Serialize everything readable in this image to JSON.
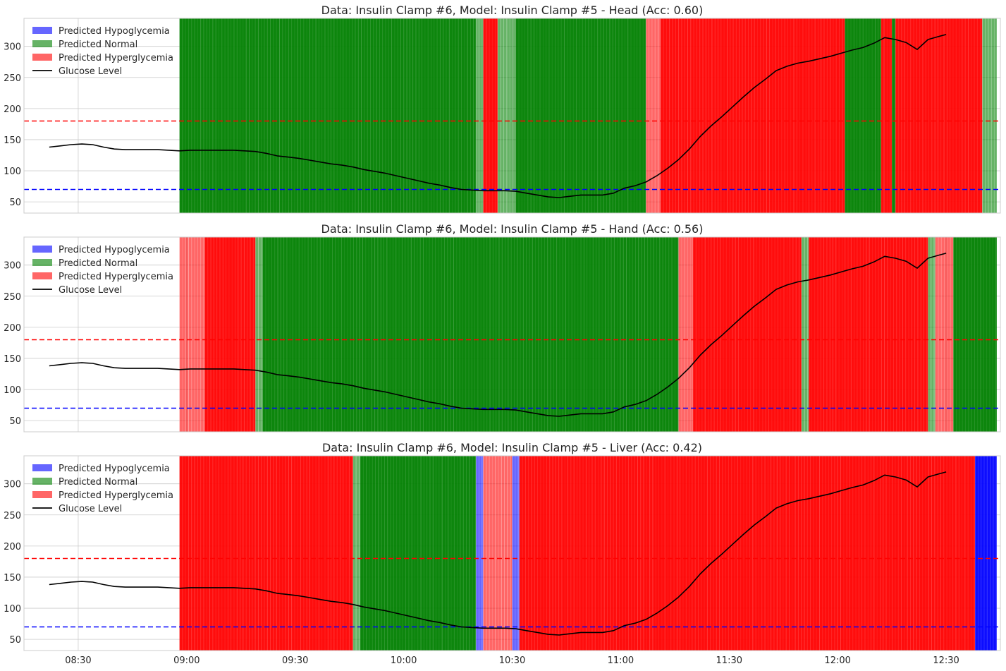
{
  "chart_data": {
    "type": "line",
    "x_axis": {
      "ticks": [
        "08:30",
        "09:00",
        "09:30",
        "10:00",
        "10:30",
        "11:00",
        "11:30",
        "12:00",
        "12:30"
      ],
      "range": [
        "08:15",
        "12:45"
      ]
    },
    "y_axis": {
      "ticks": [
        50,
        100,
        150,
        200,
        250,
        300
      ],
      "ylim": [
        32,
        345
      ]
    },
    "grid": true,
    "legend_placement": "top-left",
    "legend": [
      "Predicted Hypoglycemia",
      "Predicted Normal",
      "Predicted Hyperglycemia",
      "Glucose Level"
    ],
    "colors": {
      "hypo": "#0000ff",
      "normal": "#008000",
      "hyper": "#ff0000",
      "glucose": "#000000",
      "hypo_threshold_line": "#0000ff",
      "hyper_threshold_line": "#ff0000"
    },
    "thresholds": {
      "hypo": 70,
      "hyper": 180
    },
    "glucose": {
      "times": [
        "08:22",
        "08:25",
        "08:28",
        "08:31",
        "08:34",
        "08:37",
        "08:40",
        "08:43",
        "08:46",
        "08:49",
        "08:52",
        "08:55",
        "08:58",
        "09:01",
        "09:04",
        "09:07",
        "09:10",
        "09:13",
        "09:16",
        "09:19",
        "09:22",
        "09:25",
        "09:28",
        "09:31",
        "09:34",
        "09:37",
        "09:40",
        "09:43",
        "09:46",
        "09:49",
        "09:52",
        "09:55",
        "09:58",
        "10:01",
        "10:04",
        "10:07",
        "10:10",
        "10:13",
        "10:16",
        "10:19",
        "10:22",
        "10:25",
        "10:28",
        "10:31",
        "10:34",
        "10:37",
        "10:40",
        "10:43",
        "10:46",
        "10:49",
        "10:52",
        "10:55",
        "10:58",
        "11:01",
        "11:04",
        "11:07",
        "11:10",
        "11:13",
        "11:16",
        "11:19",
        "11:22",
        "11:25",
        "11:28",
        "11:31",
        "11:34",
        "11:37",
        "11:40",
        "11:43",
        "11:46",
        "11:49",
        "11:52",
        "11:55",
        "11:58",
        "12:01",
        "12:04",
        "12:07",
        "12:10",
        "12:13",
        "12:16",
        "12:19",
        "12:22",
        "12:25",
        "12:28",
        "12:30"
      ],
      "values": [
        138,
        140,
        142,
        143,
        142,
        138,
        135,
        134,
        134,
        134,
        134,
        133,
        132,
        133,
        133,
        133,
        133,
        133,
        132,
        131,
        128,
        124,
        122,
        120,
        117,
        114,
        111,
        109,
        106,
        102,
        99,
        96,
        92,
        88,
        84,
        80,
        77,
        73,
        70,
        69,
        68,
        68,
        68,
        67,
        64,
        61,
        58,
        57,
        59,
        61,
        61,
        61,
        64,
        72,
        76,
        82,
        92,
        104,
        118,
        135,
        155,
        172,
        187,
        203,
        219,
        234,
        247,
        261,
        268,
        273,
        276,
        280,
        284,
        289,
        294,
        298,
        305,
        314,
        311,
        306,
        295,
        311,
        316,
        319
      ]
    },
    "panels": [
      {
        "title": "Data: Insulin Clamp #6, Model: Insulin Clamp #5 - Head (Acc: 0.60)",
        "segments": [
          {
            "start": "08:58",
            "end": "10:20",
            "cls": "normal"
          },
          {
            "start": "10:20",
            "end": "10:22",
            "cls": "normal",
            "shade": "light"
          },
          {
            "start": "10:22",
            "end": "10:26",
            "cls": "hyper"
          },
          {
            "start": "10:26",
            "end": "10:31",
            "cls": "normal",
            "shade": "light"
          },
          {
            "start": "10:31",
            "end": "11:07",
            "cls": "normal"
          },
          {
            "start": "11:07",
            "end": "11:11",
            "cls": "hyper",
            "shade": "light"
          },
          {
            "start": "11:11",
            "end": "12:02",
            "cls": "hyper"
          },
          {
            "start": "12:02",
            "end": "12:12",
            "cls": "normal"
          },
          {
            "start": "12:12",
            "end": "12:15",
            "cls": "hyper"
          },
          {
            "start": "12:15",
            "end": "12:16",
            "cls": "normal"
          },
          {
            "start": "12:16",
            "end": "12:40",
            "cls": "hyper"
          },
          {
            "start": "12:40",
            "end": "12:44",
            "cls": "normal",
            "shade": "light"
          }
        ]
      },
      {
        "title": "Data: Insulin Clamp #6, Model: Insulin Clamp #5 - Hand (Acc: 0.56)",
        "segments": [
          {
            "start": "08:58",
            "end": "09:05",
            "cls": "hyper",
            "shade": "light"
          },
          {
            "start": "09:05",
            "end": "09:19",
            "cls": "hyper"
          },
          {
            "start": "09:19",
            "end": "09:21",
            "cls": "normal",
            "shade": "light"
          },
          {
            "start": "09:21",
            "end": "11:16",
            "cls": "normal"
          },
          {
            "start": "11:16",
            "end": "11:20",
            "cls": "hyper",
            "shade": "light"
          },
          {
            "start": "11:20",
            "end": "11:50",
            "cls": "hyper"
          },
          {
            "start": "11:50",
            "end": "11:52",
            "cls": "normal",
            "shade": "light"
          },
          {
            "start": "11:52",
            "end": "12:25",
            "cls": "hyper"
          },
          {
            "start": "12:25",
            "end": "12:27",
            "cls": "normal",
            "shade": "light"
          },
          {
            "start": "12:27",
            "end": "12:32",
            "cls": "hyper",
            "shade": "light"
          },
          {
            "start": "12:32",
            "end": "12:44",
            "cls": "normal"
          }
        ]
      },
      {
        "title": "Data: Insulin Clamp #6, Model: Insulin Clamp #5 - Liver (Acc: 0.42)",
        "segments": [
          {
            "start": "08:58",
            "end": "09:46",
            "cls": "hyper"
          },
          {
            "start": "09:46",
            "end": "09:48",
            "cls": "normal",
            "shade": "light"
          },
          {
            "start": "09:48",
            "end": "10:20",
            "cls": "normal"
          },
          {
            "start": "10:20",
            "end": "10:22",
            "cls": "hypo",
            "shade": "light"
          },
          {
            "start": "10:22",
            "end": "10:30",
            "cls": "hyper",
            "shade": "light"
          },
          {
            "start": "10:30",
            "end": "10:32",
            "cls": "hypo",
            "shade": "light"
          },
          {
            "start": "10:32",
            "end": "12:38",
            "cls": "hyper"
          },
          {
            "start": "12:38",
            "end": "12:44",
            "cls": "hypo"
          }
        ]
      }
    ]
  }
}
